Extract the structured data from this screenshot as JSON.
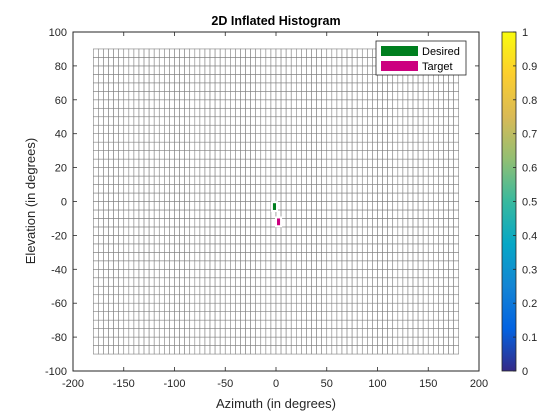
{
  "chart_data": {
    "type": "heatmap",
    "title": "2D Inflated Histogram",
    "xlabel": "Azimuth (in degrees)",
    "ylabel": "Elevation (in degrees)",
    "xlim": [
      -200,
      200
    ],
    "ylim": [
      -100,
      100
    ],
    "xticks": [
      -200,
      -150,
      -100,
      -50,
      0,
      50,
      100,
      150,
      200
    ],
    "yticks": [
      -100,
      -80,
      -60,
      -40,
      -20,
      0,
      20,
      40,
      60,
      80,
      100
    ],
    "grid_cells": {
      "az_range": [
        -180,
        180
      ],
      "el_range": [
        -90,
        90
      ],
      "bin_width_deg": 5,
      "edge_color": "#808080",
      "face_color": "#ffffff"
    },
    "highlighted_bins": [
      {
        "name": "Desired",
        "color": "#007f1f",
        "azimuth": [
          -3,
          0
        ],
        "elevation": [
          -5,
          -1
        ]
      },
      {
        "name": "Target",
        "color": "#cc007f",
        "azimuth": [
          1,
          4
        ],
        "elevation": [
          -14,
          -10
        ]
      }
    ],
    "legend": {
      "placement": "top-right",
      "entries": [
        {
          "label": "Desired",
          "color": "#007f1f"
        },
        {
          "label": "Target",
          "color": "#cc007f"
        }
      ]
    },
    "colorbar": {
      "colormap": "parula",
      "range": [
        0,
        1
      ],
      "ticks": [
        0,
        0.1,
        0.2,
        0.3,
        0.4,
        0.5,
        0.6,
        0.7,
        0.8,
        0.9,
        1
      ],
      "tick_labels": [
        "0",
        "0.1",
        "0.2",
        "0.3",
        "0.4",
        "0.5",
        "0.6",
        "0.7",
        "0.8",
        "0.9",
        "1"
      ],
      "colors": [
        "#352a87",
        "#0363e1",
        "#1485d4",
        "#06a7c6",
        "#38b99e",
        "#92bf73",
        "#d9ba56",
        "#fcce2e",
        "#f9fb0e"
      ]
    }
  }
}
